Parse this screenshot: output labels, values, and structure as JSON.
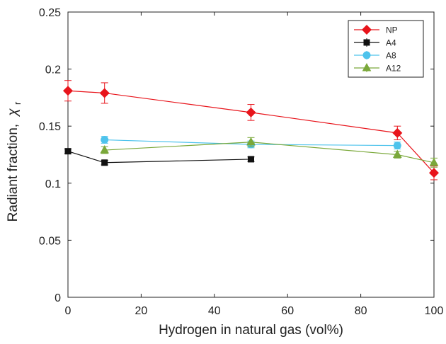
{
  "chart_data": {
    "type": "line",
    "xlabel": "Hydrogen in natural gas (vol%)",
    "ylabel": "Radiant fraction,",
    "ylabel_symbol": "χ",
    "ylabel_subscript": "r",
    "xlim": [
      0,
      100
    ],
    "ylim": [
      0,
      0.25
    ],
    "xticks": [
      0,
      20,
      40,
      60,
      80,
      100
    ],
    "yticks": [
      0,
      0.05,
      0.1,
      0.15,
      0.2,
      0.25
    ],
    "xtick_labels": [
      "0",
      "20",
      "40",
      "60",
      "80",
      "100"
    ],
    "ytick_labels": [
      "0",
      "0.05",
      "0.1",
      "0.15",
      "0.2",
      "0.25"
    ],
    "grid": false,
    "legend_position": "top-right",
    "series": [
      {
        "name": "NP",
        "color": "#e8141b",
        "marker": "diamond",
        "points": [
          {
            "x": 0,
            "y": 0.181,
            "err": 0.009
          },
          {
            "x": 10,
            "y": 0.179,
            "err": 0.009
          },
          {
            "x": 50,
            "y": 0.162,
            "err": 0.007
          },
          {
            "x": 90,
            "y": 0.144,
            "err": 0.006
          },
          {
            "x": 100,
            "y": 0.109,
            "err": 0.006
          }
        ]
      },
      {
        "name": "A4",
        "color": "#111111",
        "marker": "square",
        "points": [
          {
            "x": 0,
            "y": 0.128,
            "err": 0.002
          },
          {
            "x": 10,
            "y": 0.118,
            "err": 0.002
          },
          {
            "x": 50,
            "y": 0.121,
            "err": 0.002
          }
        ]
      },
      {
        "name": "A8",
        "color": "#4ec3ec",
        "marker": "circle",
        "points": [
          {
            "x": 10,
            "y": 0.138,
            "err": 0.003
          },
          {
            "x": 50,
            "y": 0.134,
            "err": 0.003
          },
          {
            "x": 90,
            "y": 0.133,
            "err": 0.003
          }
        ]
      },
      {
        "name": "A12",
        "color": "#7aa83a",
        "marker": "triangle",
        "points": [
          {
            "x": 10,
            "y": 0.129,
            "err": 0.003
          },
          {
            "x": 50,
            "y": 0.136,
            "err": 0.004
          },
          {
            "x": 90,
            "y": 0.125,
            "err": 0.003
          },
          {
            "x": 100,
            "y": 0.118,
            "err": 0.004
          }
        ]
      }
    ]
  }
}
